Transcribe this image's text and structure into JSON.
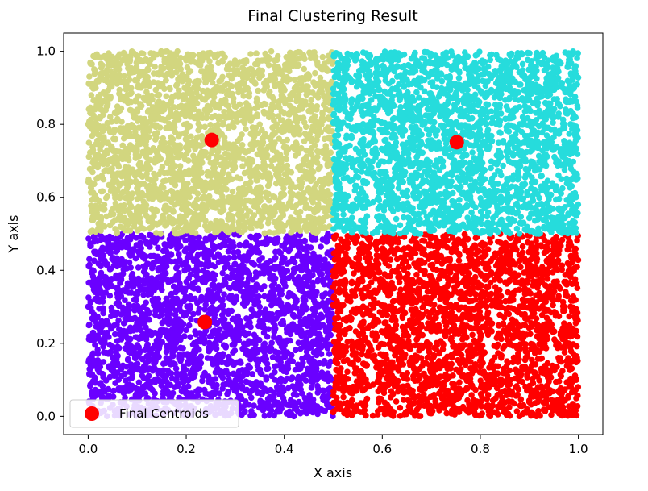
{
  "chart_data": {
    "type": "scatter",
    "title": "Final Clustering Result",
    "xlabel": "X axis",
    "ylabel": "Y axis",
    "xlim": [
      -0.05,
      1.05
    ],
    "ylim": [
      -0.05,
      1.05
    ],
    "xticks": [
      "0.0",
      "0.2",
      "0.4",
      "0.6",
      "0.8",
      "1.0"
    ],
    "yticks": [
      "0.0",
      "0.2",
      "0.4",
      "0.6",
      "0.8",
      "1.0"
    ],
    "grid": false,
    "clusters": [
      {
        "id": 0,
        "color": "#6a00ff",
        "x_range": [
          0.0,
          0.5
        ],
        "y_range": [
          0.0,
          0.5
        ],
        "points_sampled": 2500
      },
      {
        "id": 1,
        "color": "#ff0000",
        "x_range": [
          0.5,
          1.0
        ],
        "y_range": [
          0.0,
          0.5
        ],
        "points_sampled": 2500
      },
      {
        "id": 2,
        "color": "#d2d67f",
        "x_range": [
          0.0,
          0.5
        ],
        "y_range": [
          0.5,
          1.0
        ],
        "points_sampled": 2500
      },
      {
        "id": 3,
        "color": "#26dcdc",
        "x_range": [
          0.5,
          1.0
        ],
        "y_range": [
          0.5,
          1.0
        ],
        "points_sampled": 2500
      }
    ],
    "centroids": {
      "name": "Final Centroids",
      "color": "#ff0000",
      "points": [
        {
          "x": 0.252,
          "y": 0.757
        },
        {
          "x": 0.752,
          "y": 0.751
        },
        {
          "x": 0.238,
          "y": 0.258
        }
      ]
    },
    "legend": {
      "placement": "lower-left",
      "entries": [
        "Final Centroids"
      ]
    }
  }
}
